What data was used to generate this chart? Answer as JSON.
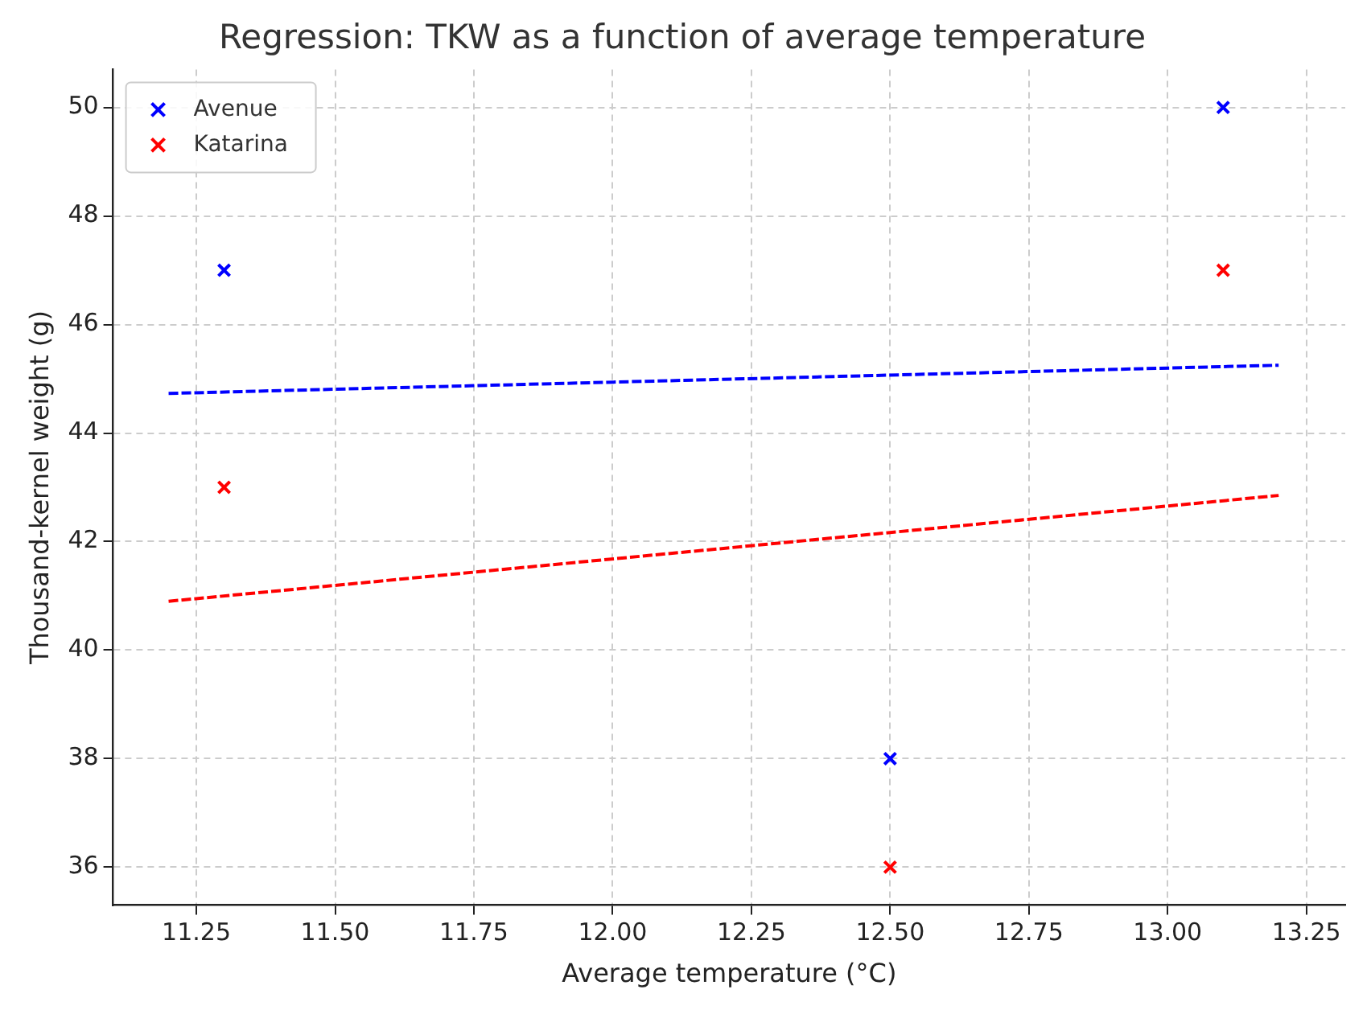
{
  "chart_data": {
    "type": "scatter",
    "title": "Regression: TKW as a function of average temperature",
    "xlabel": "Average temperature (°C)",
    "ylabel": "Thousand-kernel weight (g)",
    "series": [
      {
        "name": "Avenue",
        "color": "#0000ff",
        "x": [
          11.3,
          12.5,
          13.1
        ],
        "values": [
          47,
          38,
          50
        ]
      },
      {
        "name": "Katarina",
        "color": "#ff0000",
        "x": [
          11.3,
          12.5,
          13.1
        ],
        "values": [
          43,
          36,
          47
        ]
      },
      {
        "type": "line",
        "color": "#0000ff",
        "x": [
          11.2,
          13.2
        ],
        "values": [
          44.73,
          45.25
        ],
        "line_style": "dashed",
        "marker": "none"
      },
      {
        "type": "line",
        "color": "#ff0000",
        "x": [
          11.2,
          13.2
        ],
        "values": [
          40.9,
          42.85
        ],
        "line_style": "dashed",
        "marker": "none"
      }
    ],
    "xlim": [
      11.1,
      13.32
    ],
    "xticks": [
      {
        "value": 11.25,
        "label": "11.25"
      },
      {
        "value": 11.5,
        "label": "11.50"
      },
      {
        "value": 11.75,
        "label": "11.75"
      },
      {
        "value": 12,
        "label": "12.00"
      },
      {
        "value": 12.25,
        "label": "12.25"
      },
      {
        "value": 12.5,
        "label": "12.50"
      },
      {
        "value": 12.75,
        "label": "12.75"
      },
      {
        "value": 13,
        "label": "13.00"
      },
      {
        "value": 13.25,
        "label": "13.25"
      }
    ],
    "ylim": [
      35.3,
      50.7
    ],
    "yticks": [
      36,
      38,
      40,
      42,
      44,
      46,
      48,
      50
    ],
    "grid": true,
    "legend": "top left",
    "marker": "cross"
  }
}
